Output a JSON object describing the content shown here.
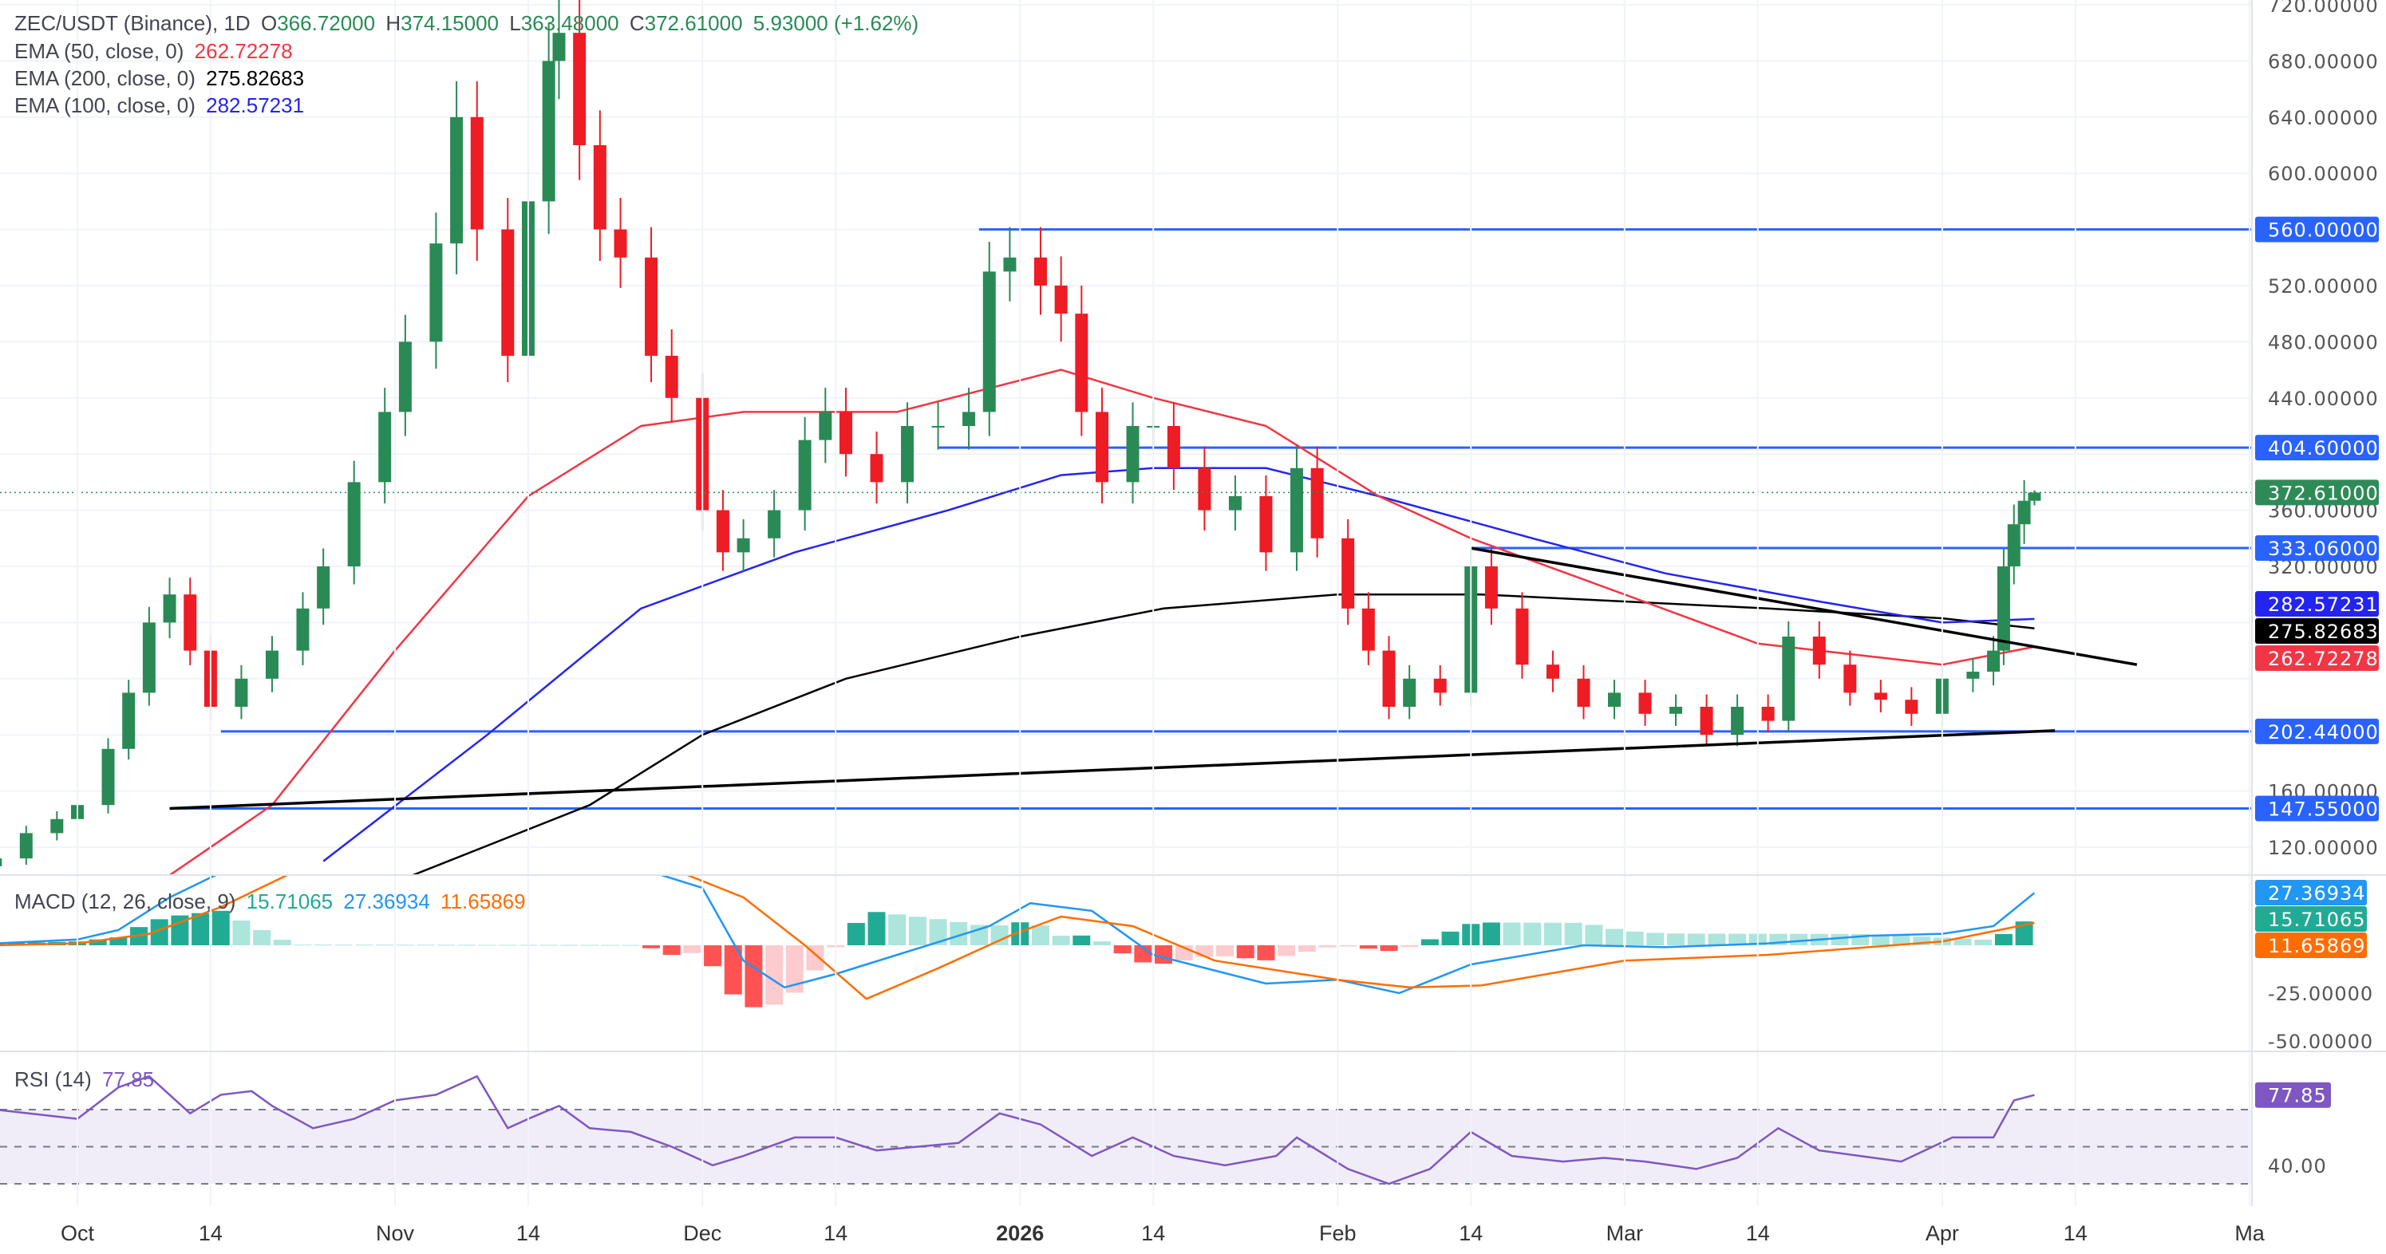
{
  "legend": {
    "symbol": "ZEC/USDT (Binance), 1D",
    "o_label": "O",
    "o": "366.72000",
    "h_label": "H",
    "h": "374.15000",
    "l_label": "L",
    "l": "363.48000",
    "c_label": "C",
    "c": "372.61000",
    "change": "5.93000 (+1.62%)",
    "ema50_label": "EMA (50, close, 0)",
    "ema50": "262.72278",
    "ema200_label": "EMA (200, close, 0)",
    "ema200": "275.82683",
    "ema100_label": "EMA (100, close, 0)",
    "ema100": "282.57231",
    "macd_label": "MACD (12, 26, close, 9)",
    "macd_hist": "15.71065",
    "macd_line": "27.36934",
    "macd_signal": "11.65869",
    "rsi_label": "RSI (14)",
    "rsi": "77.85"
  },
  "colors": {
    "up": "#2a8a55",
    "down": "#ee1c24",
    "ema50": "#f23645",
    "ema100": "#2424f0",
    "ema200": "#000000",
    "level": "#2962ff",
    "macd": "#2196f3",
    "signal": "#ff6d00",
    "hist_up": "#22ab94",
    "hist_up_light": "#ace5dc",
    "hist_down": "#ff5252",
    "hist_down_light": "#fccbcd",
    "rsi": "#7e57c2",
    "rsi_band": "#f0edf8",
    "last": "#2e8b57"
  },
  "chart_data": {
    "type": "candlestick",
    "price_ticks": [
      "720.00000",
      "680.00000",
      "640.00000",
      "600.00000",
      "520.00000",
      "480.00000",
      "440.00000",
      "360.00000",
      "320.00000",
      "160.00000",
      "120.00000"
    ],
    "price_tick_values": [
      720,
      680,
      640,
      600,
      520,
      480,
      440,
      360,
      320,
      160,
      120
    ],
    "ylim": [
      100,
      725
    ],
    "x_labels": [
      {
        "t": "Oct",
        "d": "2025-10-01"
      },
      {
        "t": "14",
        "d": "2025-10-14"
      },
      {
        "t": "Nov",
        "d": "2025-11-01"
      },
      {
        "t": "14",
        "d": "2025-11-14"
      },
      {
        "t": "Dec",
        "d": "2025-12-01"
      },
      {
        "t": "14",
        "d": "2025-12-14"
      },
      {
        "t": "2026",
        "d": "2026-01-01"
      },
      {
        "t": "14",
        "d": "2026-01-14"
      },
      {
        "t": "Feb",
        "d": "2026-02-01"
      },
      {
        "t": "14",
        "d": "2026-02-14"
      },
      {
        "t": "Mar",
        "d": "2026-03-01"
      },
      {
        "t": "14",
        "d": "2026-03-14"
      },
      {
        "t": "Apr",
        "d": "2026-04-01"
      },
      {
        "t": "14",
        "d": "2026-04-14"
      },
      {
        "t": "Ma",
        "d": "2026-05-01"
      }
    ],
    "closes": [
      [
        "2025-09-23",
        112
      ],
      [
        "2025-09-26",
        130
      ],
      [
        "2025-09-29",
        140
      ],
      [
        "2025-10-01",
        150
      ],
      [
        "2025-10-04",
        190
      ],
      [
        "2025-10-06",
        230
      ],
      [
        "2025-10-08",
        280
      ],
      [
        "2025-10-10",
        300
      ],
      [
        "2025-10-12",
        260
      ],
      [
        "2025-10-14",
        220
      ],
      [
        "2025-10-17",
        240
      ],
      [
        "2025-10-20",
        260
      ],
      [
        "2025-10-23",
        290
      ],
      [
        "2025-10-25",
        320
      ],
      [
        "2025-10-28",
        380
      ],
      [
        "2025-10-31",
        430
      ],
      [
        "2025-11-02",
        480
      ],
      [
        "2025-11-05",
        550
      ],
      [
        "2025-11-07",
        640
      ],
      [
        "2025-11-09",
        560
      ],
      [
        "2025-11-12",
        470
      ],
      [
        "2025-11-14",
        580
      ],
      [
        "2025-11-16",
        680
      ],
      [
        "2025-11-17",
        700
      ],
      [
        "2025-11-19",
        620
      ],
      [
        "2025-11-21",
        560
      ],
      [
        "2025-11-23",
        540
      ],
      [
        "2025-11-26",
        470
      ],
      [
        "2025-11-28",
        440
      ],
      [
        "2025-12-01",
        360
      ],
      [
        "2025-12-03",
        330
      ],
      [
        "2025-12-05",
        340
      ],
      [
        "2025-12-08",
        360
      ],
      [
        "2025-12-11",
        410
      ],
      [
        "2025-12-13",
        430
      ],
      [
        "2025-12-15",
        400
      ],
      [
        "2025-12-18",
        380
      ],
      [
        "2025-12-21",
        420
      ],
      [
        "2025-12-24",
        420
      ],
      [
        "2025-12-27",
        430
      ],
      [
        "2025-12-29",
        530
      ],
      [
        "2025-12-31",
        540
      ],
      [
        "2026-01-03",
        520
      ],
      [
        "2026-01-05",
        500
      ],
      [
        "2026-01-07",
        430
      ],
      [
        "2026-01-09",
        380
      ],
      [
        "2026-01-12",
        420
      ],
      [
        "2026-01-14",
        420
      ],
      [
        "2026-01-16",
        390
      ],
      [
        "2026-01-19",
        360
      ],
      [
        "2026-01-22",
        370
      ],
      [
        "2026-01-25",
        330
      ],
      [
        "2026-01-28",
        390
      ],
      [
        "2026-01-30",
        340
      ],
      [
        "2026-02-02",
        290
      ],
      [
        "2026-02-04",
        260
      ],
      [
        "2026-02-06",
        220
      ],
      [
        "2026-02-08",
        240
      ],
      [
        "2026-02-11",
        230
      ],
      [
        "2026-02-14",
        320
      ],
      [
        "2026-02-16",
        290
      ],
      [
        "2026-02-19",
        250
      ],
      [
        "2026-02-22",
        240
      ],
      [
        "2026-02-25",
        220
      ],
      [
        "2026-02-28",
        230
      ],
      [
        "2026-03-03",
        215
      ],
      [
        "2026-03-06",
        220
      ],
      [
        "2026-03-09",
        200
      ],
      [
        "2026-03-12",
        220
      ],
      [
        "2026-03-15",
        210
      ],
      [
        "2026-03-17",
        270
      ],
      [
        "2026-03-20",
        250
      ],
      [
        "2026-03-23",
        230
      ],
      [
        "2026-03-26",
        225
      ],
      [
        "2026-03-29",
        215
      ],
      [
        "2026-04-01",
        240
      ],
      [
        "2026-04-04",
        245
      ],
      [
        "2026-04-06",
        260
      ],
      [
        "2026-04-07",
        320
      ],
      [
        "2026-04-08",
        350
      ],
      [
        "2026-04-09",
        366.72
      ],
      [
        "2026-04-10",
        372.61
      ]
    ],
    "last_candle": {
      "date": "2026-04-10",
      "open": 366.72,
      "high": 374.15,
      "low": 363.48,
      "close": 372.61
    },
    "ema50": [
      [
        "2025-10-10",
        100
      ],
      [
        "2025-10-20",
        150
      ],
      [
        "2025-11-01",
        260
      ],
      [
        "2025-11-14",
        370
      ],
      [
        "2025-11-25",
        420
      ],
      [
        "2025-12-05",
        430
      ],
      [
        "2025-12-20",
        430
      ],
      [
        "2026-01-05",
        460
      ],
      [
        "2026-01-14",
        440
      ],
      [
        "2026-01-25",
        420
      ],
      [
        "2026-02-05",
        370
      ],
      [
        "2026-02-14",
        340
      ],
      [
        "2026-03-01",
        300
      ],
      [
        "2026-03-14",
        265
      ],
      [
        "2026-04-01",
        250
      ],
      [
        "2026-04-10",
        262.72
      ]
    ],
    "ema100": [
      [
        "2025-10-25",
        110
      ],
      [
        "2025-11-10",
        200
      ],
      [
        "2025-11-25",
        290
      ],
      [
        "2025-12-10",
        330
      ],
      [
        "2025-12-25",
        360
      ],
      [
        "2026-01-05",
        385
      ],
      [
        "2026-01-14",
        390
      ],
      [
        "2026-01-25",
        390
      ],
      [
        "2026-02-05",
        370
      ],
      [
        "2026-02-20",
        340
      ],
      [
        "2026-03-05",
        315
      ],
      [
        "2026-03-20",
        295
      ],
      [
        "2026-04-01",
        280
      ],
      [
        "2026-04-10",
        282.57
      ]
    ],
    "ema200": [
      [
        "2025-11-01",
        95
      ],
      [
        "2025-11-20",
        150
      ],
      [
        "2025-12-01",
        200
      ],
      [
        "2025-12-15",
        240
      ],
      [
        "2026-01-01",
        270
      ],
      [
        "2026-01-15",
        290
      ],
      [
        "2026-02-01",
        300
      ],
      [
        "2026-02-15",
        300
      ],
      [
        "2026-03-01",
        295
      ],
      [
        "2026-03-15",
        290
      ],
      [
        "2026-04-01",
        283
      ],
      [
        "2026-04-10",
        275.83
      ]
    ],
    "levels": [
      {
        "price": 560,
        "label": "560.00000",
        "from": "2025-12-28"
      },
      {
        "price": 404.6,
        "label": "404.60000",
        "from": "2025-12-24"
      },
      {
        "price": 333.06,
        "label": "333.06000",
        "from": "2026-02-14"
      },
      {
        "price": 202.44,
        "label": "202.44000",
        "from": "2025-10-15"
      },
      {
        "price": 147.55,
        "label": "147.55000",
        "from": "2025-10-10"
      }
    ],
    "trendlines": [
      {
        "from": [
          "2025-10-10",
          147.55
        ],
        "to": [
          "2026-04-12",
          203
        ]
      },
      {
        "from": [
          "2026-02-14",
          333
        ],
        "to": [
          "2026-04-20",
          250
        ]
      }
    ],
    "price_badges": [
      {
        "price": 372.61,
        "label": "372.61000",
        "color": "#2e8b57"
      },
      {
        "price": 282.57,
        "label": "282.57231",
        "color": "#2424f0"
      },
      {
        "price": 275.83,
        "label": "275.82683",
        "color": "#000000"
      },
      {
        "price": 262.72,
        "label": "262.72278",
        "color": "#f23645"
      }
    ],
    "macd": {
      "ticks": [
        "-25.00000",
        "-50.00000"
      ],
      "tick_values": [
        -25,
        -50
      ],
      "line": [
        [
          "2025-09-23",
          1
        ],
        [
          "2025-10-01",
          3
        ],
        [
          "2025-10-05",
          8
        ],
        [
          "2025-10-10",
          25
        ],
        [
          "2025-10-15",
          38
        ],
        [
          "2025-11-25",
          40
        ],
        [
          "2025-12-01",
          30
        ],
        [
          "2025-12-05",
          -8
        ],
        [
          "2025-12-09",
          -22
        ],
        [
          "2025-12-14",
          -15
        ],
        [
          "2025-12-20",
          -5
        ],
        [
          "2025-12-29",
          10
        ],
        [
          "2026-01-02",
          22
        ],
        [
          "2026-01-08",
          18
        ],
        [
          "2026-01-14",
          -5
        ],
        [
          "2026-01-25",
          -20
        ],
        [
          "2026-02-01",
          -18
        ],
        [
          "2026-02-07",
          -25
        ],
        [
          "2026-02-14",
          -10
        ],
        [
          "2026-02-25",
          0
        ],
        [
          "2026-03-05",
          -1
        ],
        [
          "2026-03-15",
          1
        ],
        [
          "2026-03-25",
          5
        ],
        [
          "2026-04-01",
          6
        ],
        [
          "2026-04-06",
          10
        ],
        [
          "2026-04-10",
          27.37
        ]
      ],
      "signal": [
        [
          "2025-09-23",
          0
        ],
        [
          "2025-10-01",
          1
        ],
        [
          "2025-10-08",
          6
        ],
        [
          "2025-10-15",
          20
        ],
        [
          "2025-10-22",
          38
        ],
        [
          "2025-11-28",
          40
        ],
        [
          "2025-12-05",
          25
        ],
        [
          "2025-12-11",
          0
        ],
        [
          "2025-12-17",
          -28
        ],
        [
          "2025-12-24",
          -12
        ],
        [
          "2025-12-31",
          5
        ],
        [
          "2026-01-05",
          15
        ],
        [
          "2026-01-12",
          10
        ],
        [
          "2026-01-20",
          -8
        ],
        [
          "2026-02-01",
          -18
        ],
        [
          "2026-02-08",
          -22
        ],
        [
          "2026-02-15",
          -21
        ],
        [
          "2026-03-01",
          -8
        ],
        [
          "2026-03-15",
          -5
        ],
        [
          "2026-04-01",
          2
        ],
        [
          "2026-04-10",
          11.66
        ]
      ]
    },
    "rsi": {
      "ticks": [
        "40.00"
      ],
      "tick_values": [
        40
      ],
      "bands": [
        70,
        50,
        30
      ],
      "values": [
        [
          "2025-09-23",
          70
        ],
        [
          "2025-10-01",
          65
        ],
        [
          "2025-10-05",
          82
        ],
        [
          "2025-10-08",
          88
        ],
        [
          "2025-10-12",
          68
        ],
        [
          "2025-10-15",
          78
        ],
        [
          "2025-10-18",
          80
        ],
        [
          "2025-10-20",
          72
        ],
        [
          "2025-10-24",
          60
        ],
        [
          "2025-10-28",
          65
        ],
        [
          "2025-11-01",
          75
        ],
        [
          "2025-11-05",
          78
        ],
        [
          "2025-11-09",
          88
        ],
        [
          "2025-11-12",
          60
        ],
        [
          "2025-11-14",
          65
        ],
        [
          "2025-11-17",
          72
        ],
        [
          "2025-11-20",
          60
        ],
        [
          "2025-11-24",
          58
        ],
        [
          "2025-11-28",
          50
        ],
        [
          "2025-12-02",
          40
        ],
        [
          "2025-12-05",
          45
        ],
        [
          "2025-12-10",
          55
        ],
        [
          "2025-12-14",
          55
        ],
        [
          "2025-12-18",
          48
        ],
        [
          "2025-12-22",
          50
        ],
        [
          "2025-12-26",
          52
        ],
        [
          "2025-12-30",
          68
        ],
        [
          "2026-01-03",
          62
        ],
        [
          "2026-01-08",
          45
        ],
        [
          "2026-01-12",
          55
        ],
        [
          "2026-01-16",
          45
        ],
        [
          "2026-01-21",
          40
        ],
        [
          "2026-01-26",
          45
        ],
        [
          "2026-01-28",
          55
        ],
        [
          "2026-02-02",
          38
        ],
        [
          "2026-02-06",
          30
        ],
        [
          "2026-02-10",
          38
        ],
        [
          "2026-02-14",
          58
        ],
        [
          "2026-02-18",
          45
        ],
        [
          "2026-02-23",
          42
        ],
        [
          "2026-02-27",
          44
        ],
        [
          "2026-03-03",
          42
        ],
        [
          "2026-03-08",
          38
        ],
        [
          "2026-03-12",
          44
        ],
        [
          "2026-03-16",
          60
        ],
        [
          "2026-03-20",
          48
        ],
        [
          "2026-03-24",
          45
        ],
        [
          "2026-03-28",
          42
        ],
        [
          "2026-04-02",
          55
        ],
        [
          "2026-04-06",
          55
        ],
        [
          "2026-04-08",
          75
        ],
        [
          "2026-04-10",
          77.85
        ]
      ]
    }
  }
}
